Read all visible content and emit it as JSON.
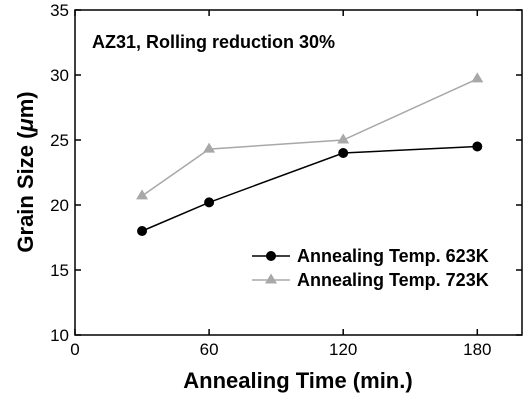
{
  "chart_data": {
    "type": "line",
    "annotation": "AZ31, Rolling reduction 30%",
    "xlabel": "Annealing Time (min.)",
    "ylabel_parts": [
      "Grain Size (",
      "μ",
      "m)"
    ],
    "xlim": [
      0,
      200
    ],
    "ylim": [
      10,
      35
    ],
    "xticks": [
      0,
      60,
      120,
      180
    ],
    "yticks": [
      10,
      15,
      20,
      25,
      30,
      35
    ],
    "grid": false,
    "legend_position": "bottom-right",
    "series": [
      {
        "name": "Annealing Temp. 623K",
        "color": "#000000",
        "marker": "circle",
        "x": [
          30,
          60,
          120,
          180
        ],
        "y": [
          18.0,
          20.2,
          24.0,
          24.5
        ]
      },
      {
        "name": "Annealing Temp. 723K",
        "color": "#a8a8a8",
        "marker": "triangle",
        "x": [
          30,
          60,
          120,
          180
        ],
        "y": [
          20.7,
          24.3,
          25.0,
          29.7
        ]
      }
    ]
  }
}
